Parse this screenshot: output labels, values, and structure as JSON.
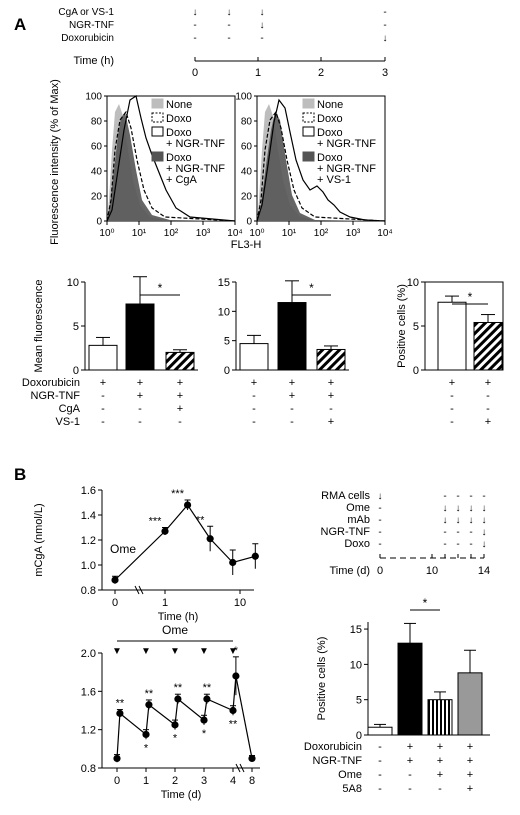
{
  "panel_letters": {
    "a": "A",
    "b": "B"
  },
  "timeline_a": {
    "rows": [
      {
        "label": "CgA or VS-1",
        "marks": [
          "↓",
          "↓",
          "↓",
          "-"
        ]
      },
      {
        "label": "NGR-TNF",
        "marks": [
          "-",
          "-",
          "↓",
          "-"
        ]
      },
      {
        "label": "Doxorubicin",
        "marks": [
          "-",
          "-",
          "-",
          "↓"
        ]
      }
    ],
    "axis_label": "Time (h)",
    "ticks": [
      "0",
      "1",
      "2",
      "3"
    ]
  },
  "flow": {
    "ylabel": "Fluorescence intensity (% of Max)",
    "yticks": [
      "0",
      "20",
      "40",
      "60",
      "80",
      "100"
    ],
    "xticks": [
      "10⁰",
      "10¹",
      "10²",
      "10³",
      "10⁴"
    ],
    "xlabel": "FL3-H",
    "legend_left": [
      {
        "label": "None",
        "style": "filled-light"
      },
      {
        "label": "Doxo",
        "style": "dashed"
      },
      {
        "label": "Doxo\n+ NGR-TNF",
        "style": "solid"
      },
      {
        "label": "Doxo\n+ NGR-TNF\n+ CgA",
        "style": "filled-dark"
      }
    ],
    "legend_right": [
      {
        "label": "None",
        "style": "filled-light"
      },
      {
        "label": "Doxo",
        "style": "dashed"
      },
      {
        "label": "Doxo\n+ NGR-TNF",
        "style": "solid"
      },
      {
        "label": "Doxo\n+ NGR-TNF\n+ VS-1",
        "style": "filled-dark"
      }
    ]
  },
  "chart_data": [
    {
      "type": "bar",
      "panel": "A-left",
      "ylabel": "Mean fluorescence",
      "ylim": [
        0,
        10
      ],
      "yticks": [
        "0",
        "5",
        "10"
      ],
      "bars": [
        {
          "value": 2.8,
          "err": 0.9,
          "fill": "white"
        },
        {
          "value": 7.5,
          "err": 3.1,
          "fill": "black"
        },
        {
          "value": 2.0,
          "err": 0.3,
          "fill": "hatch"
        }
      ],
      "significance": "*"
    },
    {
      "type": "bar",
      "panel": "A-middle",
      "ylim": [
        0,
        15
      ],
      "yticks": [
        "0",
        "5",
        "10",
        "15"
      ],
      "bars": [
        {
          "value": 4.5,
          "err": 1.4,
          "fill": "white"
        },
        {
          "value": 11.5,
          "err": 3.7,
          "fill": "black"
        },
        {
          "value": 3.5,
          "err": 0.6,
          "fill": "hatch"
        }
      ],
      "significance": "*"
    },
    {
      "type": "bar",
      "panel": "A-right",
      "ylabel": "Positive cells (%)",
      "ylim": [
        0,
        10
      ],
      "yticks": [
        "0",
        "5",
        "10"
      ],
      "bars": [
        {
          "value": 7.7,
          "err": 0.7,
          "fill": "white"
        },
        {
          "value": 5.4,
          "err": 0.9,
          "fill": "hatch"
        }
      ],
      "significance": "*"
    },
    {
      "type": "line",
      "panel": "B-top",
      "ylabel": "mCgA (nmol/L)",
      "xlabel": "Time (h)",
      "xscale": "log",
      "ylim": [
        0.8,
        1.6
      ],
      "yticks": [
        "0.8",
        "1.0",
        "1.2",
        "1.4",
        "1.6"
      ],
      "xticks": [
        "0",
        "1",
        "10"
      ],
      "annotation": "Ome",
      "points": [
        {
          "x": 0,
          "y": 0.88,
          "err": 0.03,
          "sig": ""
        },
        {
          "x": 1,
          "y": 1.27,
          "err": 0.03,
          "sig": "***"
        },
        {
          "x": 2,
          "y": 1.48,
          "err": 0.04,
          "sig": "***"
        },
        {
          "x": 4,
          "y": 1.21,
          "err": 0.1,
          "sig": "**"
        },
        {
          "x": 8,
          "y": 1.02,
          "err": 0.1,
          "sig": ""
        },
        {
          "x": 16,
          "y": 1.07,
          "err": 0.1,
          "sig": ""
        }
      ]
    },
    {
      "type": "line",
      "panel": "B-bottom",
      "xlabel": "Time (d)",
      "ylim": [
        0.8,
        2.0
      ],
      "yticks": [
        "0.8",
        "1.2",
        "1.6",
        "2.0"
      ],
      "xticks": [
        "0",
        "1",
        "2",
        "3",
        "4",
        "8"
      ],
      "annotation": "Ome",
      "points": [
        {
          "x": 0,
          "y": 0.9,
          "err": 0.04,
          "sig": ""
        },
        {
          "x": 0.1,
          "y": 1.37,
          "err": 0.04,
          "sig": "**"
        },
        {
          "x": 1,
          "y": 1.15,
          "err": 0.05,
          "sig": "*"
        },
        {
          "x": 1.1,
          "y": 1.46,
          "err": 0.05,
          "sig": "**"
        },
        {
          "x": 2,
          "y": 1.25,
          "err": 0.05,
          "sig": "*"
        },
        {
          "x": 2.1,
          "y": 1.52,
          "err": 0.05,
          "sig": "**"
        },
        {
          "x": 3,
          "y": 1.3,
          "err": 0.05,
          "sig": "*"
        },
        {
          "x": 3.1,
          "y": 1.52,
          "err": 0.05,
          "sig": "**"
        },
        {
          "x": 4,
          "y": 1.4,
          "err": 0.05,
          "sig": "**"
        },
        {
          "x": 4.1,
          "y": 1.76,
          "err": 0.2,
          "sig": "*"
        },
        {
          "x": 8,
          "y": 0.9,
          "err": 0.03,
          "sig": ""
        }
      ]
    },
    {
      "type": "bar",
      "panel": "B-right",
      "ylabel": "Positive cells (%)",
      "ylim": [
        0,
        16
      ],
      "yticks": [
        "0",
        "5",
        "10",
        "15"
      ],
      "bars": [
        {
          "value": 1.1,
          "err": 0.4,
          "fill": "white"
        },
        {
          "value": 13.0,
          "err": 2.8,
          "fill": "black"
        },
        {
          "value": 5.0,
          "err": 1.1,
          "fill": "vstripe"
        },
        {
          "value": 8.8,
          "err": 3.2,
          "fill": "gray"
        }
      ],
      "significance": "*"
    }
  ],
  "treatment_a": {
    "rows": [
      {
        "label": "Doxorubicin",
        "marks": [
          "+",
          "+",
          "+",
          "+",
          "+",
          "+",
          "+",
          "+"
        ]
      },
      {
        "label": "NGR-TNF",
        "marks": [
          "-",
          "+",
          "+",
          "-",
          "+",
          "+",
          "-",
          "-"
        ]
      },
      {
        "label": "CgA",
        "marks": [
          "-",
          "-",
          "+",
          "-",
          "-",
          "-",
          "-",
          "-"
        ]
      },
      {
        "label": "VS-1",
        "marks": [
          "-",
          "-",
          "-",
          "-",
          "-",
          "+",
          "-",
          "+"
        ]
      }
    ]
  },
  "timeline_b": {
    "rows": [
      {
        "label": "RMA cells",
        "marks": [
          "↓",
          "-",
          "-",
          "-",
          "-"
        ]
      },
      {
        "label": "Ome",
        "marks": [
          "-",
          "↓",
          "↓",
          "↓",
          "↓"
        ]
      },
      {
        "label": "mAb",
        "marks": [
          "-",
          "↓",
          "↓",
          "↓",
          "↓"
        ]
      },
      {
        "label": "NGR-TNF",
        "marks": [
          "-",
          "-",
          "-",
          "-",
          "↓"
        ]
      },
      {
        "label": "Doxo",
        "marks": [
          "-",
          "-",
          "-",
          "-",
          "↓"
        ]
      }
    ],
    "axis_label": "Time (d)",
    "ticks": [
      "0",
      "10",
      "14"
    ]
  },
  "treatment_b": {
    "rows": [
      {
        "label": "Doxorubicin",
        "marks": [
          "-",
          "+",
          "+",
          "+"
        ]
      },
      {
        "label": "NGR-TNF",
        "marks": [
          "-",
          "+",
          "+",
          "+"
        ]
      },
      {
        "label": "Ome",
        "marks": [
          "-",
          "-",
          "+",
          "+"
        ]
      },
      {
        "label": "5A8",
        "marks": [
          "-",
          "-",
          "-",
          "+"
        ]
      }
    ]
  }
}
